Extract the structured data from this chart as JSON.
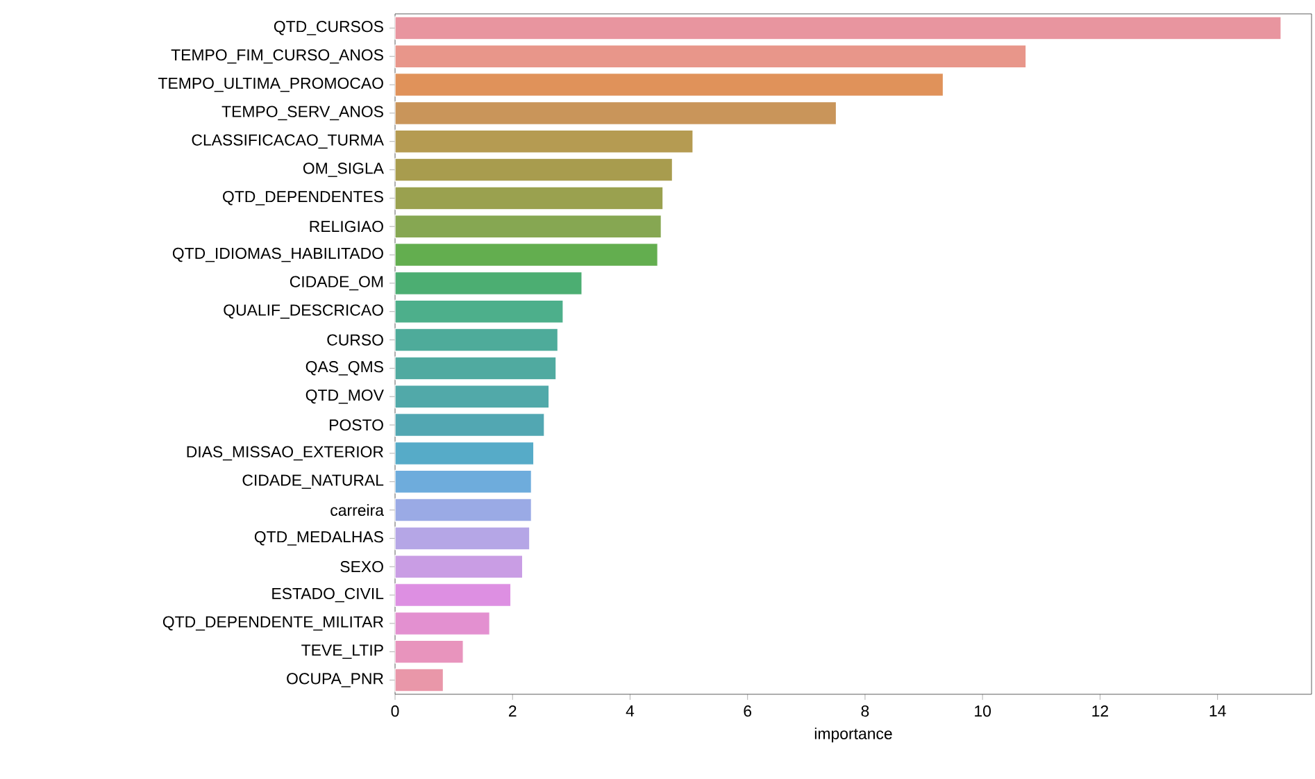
{
  "chart_data": {
    "type": "bar",
    "orientation": "horizontal",
    "xlabel": "importance",
    "categories": [
      "QTD_CURSOS",
      "TEMPO_FIM_CURSO_ANOS",
      "TEMPO_ULTIMA_PROMOCAO",
      "TEMPO_SERV_ANOS",
      "CLASSIFICACAO_TURMA",
      "OM_SIGLA",
      "QTD_DEPENDENTES",
      "RELIGIAO",
      "QTD_IDIOMAS_HABILITADO",
      "CIDADE_OM",
      "QUALIF_DESCRICAO",
      "CURSO",
      "QAS_QMS",
      "QTD_MOV",
      "POSTO",
      "DIAS_MISSAO_EXTERIOR",
      "CIDADE_NATURAL",
      "carreira",
      "QTD_MEDALHAS",
      "SEXO",
      "ESTADO_CIVIL",
      "QTD_DEPENDENTE_MILITAR",
      "TEVE_LTIP",
      "OCUPA_PNR"
    ],
    "values": [
      15.08,
      10.74,
      9.33,
      7.51,
      5.07,
      4.72,
      4.56,
      4.53,
      4.47,
      3.18,
      2.86,
      2.77,
      2.74,
      2.62,
      2.54,
      2.36,
      2.32,
      2.32,
      2.29,
      2.17,
      1.97,
      1.61,
      1.16,
      0.82
    ],
    "colors": [
      "#e8959f",
      "#e8968a",
      "#e0925a",
      "#c9955a",
      "#b59b52",
      "#a89c4e",
      "#9aa14f",
      "#86a752",
      "#63ae4f",
      "#4cae72",
      "#4daf8b",
      "#4eab9a",
      "#50aaa0",
      "#51a9a9",
      "#52a7b2",
      "#56abc8",
      "#6eacdc",
      "#9aaae5",
      "#b5a6e6",
      "#c99de4",
      "#dd8fe2",
      "#e390d0",
      "#e894bd",
      "#e997a9"
    ],
    "xlim": [
      0,
      15.6
    ],
    "xticks": [
      0,
      2,
      4,
      6,
      8,
      10,
      12,
      14
    ],
    "grid": false
  }
}
